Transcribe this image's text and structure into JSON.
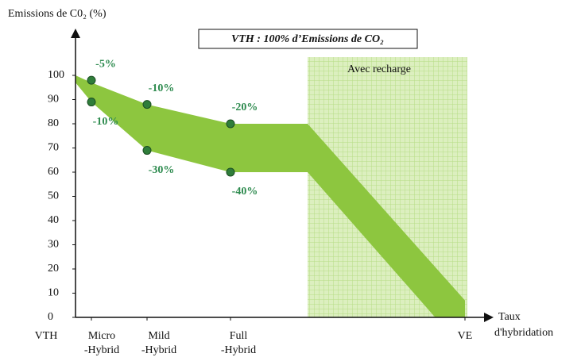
{
  "chart_data": {
    "type": "band",
    "y_label": "Emissions de C0₂ (%)",
    "x_label": [
      "Taux",
      "d'hybridation"
    ],
    "title": "VTH : 100% d’Emissions de CO₂",
    "categories": [
      "VTH",
      [
        "Micro",
        "-Hybrid"
      ],
      [
        "Mild",
        "-Hybrid"
      ],
      [
        "Full",
        "-Hybrid"
      ],
      null,
      "VE"
    ],
    "series": [
      {
        "name": "upper",
        "values": [
          100,
          97,
          88,
          80,
          80,
          7
        ]
      },
      {
        "name": "lower",
        "values": [
          97,
          89,
          69,
          60,
          60,
          -14
        ]
      }
    ],
    "color": "#8dc63f",
    "ylim": [
      0,
      100
    ],
    "yticks": [
      0,
      10,
      20,
      30,
      40,
      50,
      60,
      70,
      80,
      90,
      100
    ],
    "markers": [
      {
        "category": 1,
        "value": 98,
        "label": "-5%"
      },
      {
        "category": 1,
        "value": 89,
        "label": "-10%"
      },
      {
        "category": 2,
        "value": 88,
        "label": "-10%"
      },
      {
        "category": 2,
        "value": 69,
        "label": "-30%"
      },
      {
        "category": 3,
        "value": 80,
        "label": "-20%"
      },
      {
        "category": 3,
        "value": 60,
        "label": "-40%"
      }
    ],
    "marker_color": "#2f7d3a",
    "label_color": "#2e8b4f",
    "shaded_region": {
      "label": "Avec recharge",
      "from": 4,
      "to": 5,
      "color": "#d9efb8"
    }
  }
}
